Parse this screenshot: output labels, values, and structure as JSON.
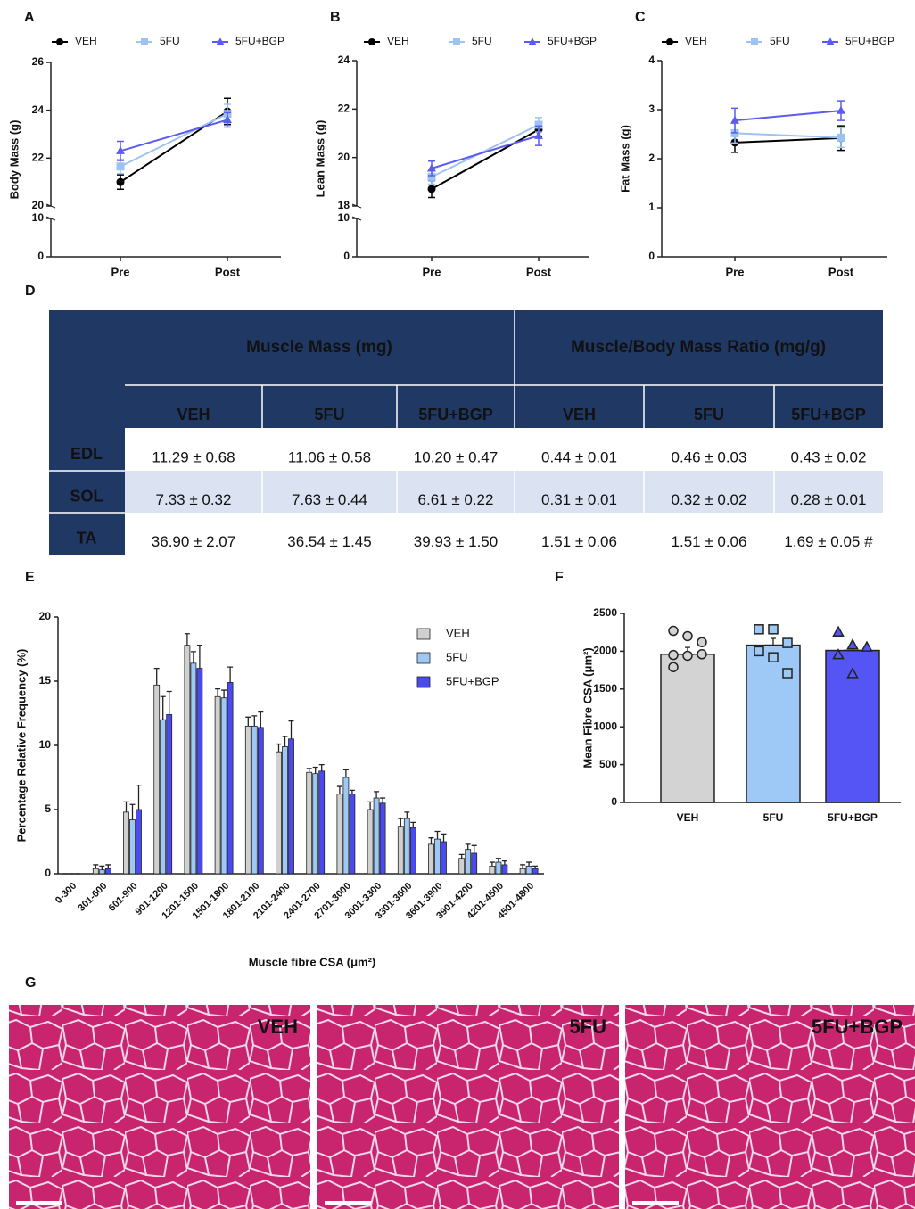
{
  "chart_data": [
    {
      "panel": "A",
      "type": "line",
      "ylabel": "Body Mass (g)",
      "categories": [
        "Pre",
        "Post"
      ],
      "series": [
        {
          "name": "VEH",
          "color": "#000000",
          "marker": "circle",
          "values": [
            21.0,
            23.95
          ],
          "errors": [
            0.3,
            0.55
          ]
        },
        {
          "name": "5FU",
          "color": "#9dc3f0",
          "marker": "square",
          "values": [
            21.65,
            23.85
          ],
          "errors": [
            0.3,
            0.4
          ]
        },
        {
          "name": "5FU+BGP",
          "color": "#5b5bf2",
          "marker": "triangle",
          "values": [
            22.3,
            23.6
          ],
          "errors": [
            0.4,
            0.3
          ]
        }
      ],
      "ylim": [
        20,
        26
      ],
      "yticks": [
        20,
        22,
        24,
        26
      ],
      "ylim_low": [
        0,
        10
      ],
      "yticks_low": [
        0,
        10
      ],
      "legend": "top"
    },
    {
      "panel": "B",
      "type": "line",
      "ylabel": "Lean Mass (g)",
      "categories": [
        "Pre",
        "Post"
      ],
      "series": [
        {
          "name": "VEH",
          "color": "#000000",
          "marker": "circle",
          "values": [
            18.7,
            21.15
          ],
          "errors": [
            0.35,
            0.3
          ]
        },
        {
          "name": "5FU",
          "color": "#9dc3f0",
          "marker": "square",
          "values": [
            19.2,
            21.35
          ],
          "errors": [
            0.3,
            0.3
          ]
        },
        {
          "name": "5FU+BGP",
          "color": "#5b5bf2",
          "marker": "triangle",
          "values": [
            19.55,
            20.9
          ],
          "errors": [
            0.3,
            0.4
          ]
        }
      ],
      "ylim": [
        18,
        24
      ],
      "yticks": [
        18,
        20,
        22,
        24
      ],
      "ylim_low": [
        0,
        10
      ],
      "yticks_low": [
        0,
        10
      ],
      "legend": "top"
    },
    {
      "panel": "C",
      "type": "line",
      "ylabel": "Fat Mass (g)",
      "categories": [
        "Pre",
        "Post"
      ],
      "series": [
        {
          "name": "VEH",
          "color": "#000000",
          "marker": "circle",
          "values": [
            2.33,
            2.42
          ],
          "errors": [
            0.2,
            0.25
          ]
        },
        {
          "name": "5FU",
          "color": "#9dc3f0",
          "marker": "square",
          "values": [
            2.52,
            2.43
          ],
          "errors": [
            0.2,
            0.2
          ]
        },
        {
          "name": "5FU+BGP",
          "color": "#5b5bf2",
          "marker": "triangle",
          "values": [
            2.78,
            2.98
          ],
          "errors": [
            0.25,
            0.2
          ]
        }
      ],
      "ylim": [
        0,
        4
      ],
      "yticks": [
        0,
        1,
        2,
        3,
        4
      ],
      "legend": "top"
    },
    {
      "panel": "E",
      "type": "bar",
      "ylabel": "Percentage Relative Frequency (%)",
      "xlabel": "Muscle fibre CSA (μm²)",
      "categories": [
        "0-300",
        "301-600",
        "601-900",
        "901-1200",
        "1201-1500",
        "1501-1800",
        "1801-2100",
        "2101-2400",
        "2401-2700",
        "2701-3000",
        "3001-3300",
        "3301-3600",
        "3601-3900",
        "3901-4200",
        "4201-4500",
        "4501-4800"
      ],
      "series": [
        {
          "name": "VEH",
          "color": "#d0d0d0",
          "values": [
            0,
            0.4,
            4.8,
            14.7,
            17.8,
            13.8,
            11.5,
            9.5,
            7.9,
            6.2,
            5.0,
            3.7,
            2.3,
            1.2,
            0.6,
            0.4
          ],
          "errors": [
            0,
            0.3,
            0.8,
            1.3,
            0.9,
            0.6,
            0.7,
            0.6,
            0.3,
            0.6,
            0.6,
            0.6,
            0.5,
            0.3,
            0.3,
            0.3
          ]
        },
        {
          "name": "5FU",
          "color": "#9ec9f7",
          "values": [
            0,
            0.3,
            4.2,
            12.0,
            16.4,
            13.7,
            11.5,
            9.9,
            7.8,
            7.5,
            5.9,
            4.3,
            2.7,
            1.9,
            0.9,
            0.6
          ],
          "errors": [
            0,
            0.3,
            1.2,
            1.8,
            0.9,
            0.6,
            0.8,
            0.8,
            0.5,
            0.6,
            0.5,
            0.5,
            0.6,
            0.4,
            0.3,
            0.3
          ]
        },
        {
          "name": "5FU+BGP",
          "color": "#4a4af0",
          "values": [
            0,
            0.4,
            5.0,
            12.4,
            16.0,
            14.9,
            11.4,
            10.5,
            8.0,
            6.2,
            5.5,
            3.6,
            2.5,
            1.6,
            0.7,
            0.4
          ],
          "errors": [
            0,
            0.3,
            1.9,
            1.8,
            1.8,
            1.2,
            1.2,
            1.4,
            0.5,
            0.3,
            0.4,
            0.4,
            0.6,
            0.6,
            0.3,
            0.2
          ]
        }
      ],
      "ylim": [
        0,
        20
      ],
      "yticks": [
        0,
        5,
        10,
        15,
        20
      ],
      "legend": "top-right"
    },
    {
      "panel": "F",
      "type": "bar",
      "ylabel": "Mean Fibre CSA (μm²)",
      "categories": [
        "VEH",
        "5FU",
        "5FU+BGP"
      ],
      "values": [
        1960,
        2080,
        2010
      ],
      "errors": [
        90,
        90,
        90
      ],
      "colors": [
        "#d3d3d3",
        "#9ec9f7",
        "#5555f5"
      ],
      "markers": [
        "circle",
        "square",
        "triangle"
      ],
      "points": [
        [
          2270,
          2200,
          2120,
          1950,
          1940,
          1960,
          1790
        ],
        [
          2290,
          2290,
          2110,
          2000,
          1920,
          1710
        ],
        [
          2250,
          2080,
          2050,
          1950,
          1700
        ]
      ],
      "ylim": [
        0,
        2500
      ],
      "yticks": [
        0,
        500,
        1000,
        1500,
        2000,
        2500
      ]
    }
  ],
  "table": {
    "panel": "D",
    "group_headers": [
      "Muscle Mass (mg)",
      "Muscle/Body Mass Ratio (mg/g)"
    ],
    "column_headers": [
      "VEH",
      "5FU",
      "5FU+BGP",
      "VEH",
      "5FU",
      "5FU+BGP"
    ],
    "rows": [
      {
        "label": "EDL",
        "cells": [
          "11.29 ± 0.68",
          "11.06 ± 0.58",
          "10.20 ± 0.47",
          "0.44 ± 0.01",
          "0.46 ± 0.03",
          "0.43 ± 0.02"
        ]
      },
      {
        "label": "SOL",
        "cells": [
          "7.33 ± 0.32",
          "7.63 ± 0.44",
          "6.61 ± 0.22",
          "0.31 ± 0.01",
          "0.32 ± 0.02",
          "0.28 ± 0.01"
        ]
      },
      {
        "label": "TA",
        "cells": [
          "36.90 ± 2.07",
          "36.54 ± 1.45",
          "39.93 ± 1.50",
          "1.51 ± 0.06",
          "1.51 ± 0.06",
          "1.69 ± 0.05 #"
        ]
      }
    ]
  },
  "images": {
    "panel": "G",
    "labels": [
      "VEH",
      "5FU",
      "5FU+BGP"
    ]
  }
}
